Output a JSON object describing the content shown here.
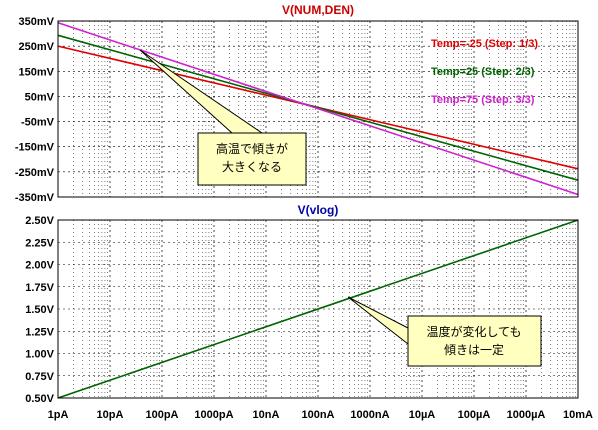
{
  "chart_data": [
    {
      "type": "line",
      "title": "V(NUM,DEN)",
      "xscale": "log",
      "xlim": [
        "1pA",
        "10mA"
      ],
      "ylim": [
        -350,
        350
      ],
      "yunit": "mV",
      "yticks": [
        "350mV",
        "250mV",
        "150mV",
        "50mV",
        "-50mV",
        "-150mV",
        "-250mV",
        "-350mV"
      ],
      "series": [
        {
          "name": "Temp=-25  (Step: 1/3)",
          "color": "#e00000",
          "x": [
            "1pA",
            "10mA"
          ],
          "y": [
            250,
            -238
          ]
        },
        {
          "name": "Temp=25  (Step: 2/3)",
          "color": "#006400",
          "x": [
            "1pA",
            "10mA"
          ],
          "y": [
            293,
            -283
          ]
        },
        {
          "name": "Temp=75  (Step: 3/3)",
          "color": "#d020d0",
          "x": [
            "1pA",
            "10mA"
          ],
          "y": [
            343,
            -340
          ]
        }
      ],
      "annotation": {
        "lines": [
          "高温で傾きが",
          "大きくなる"
        ]
      }
    },
    {
      "type": "line",
      "title": "V(vlog)",
      "xscale": "log",
      "xlim": [
        "1pA",
        "10mA"
      ],
      "ylim": [
        0.5,
        2.5
      ],
      "yunit": "V",
      "yticks": [
        "2.50V",
        "2.25V",
        "2.00V",
        "1.75V",
        "1.50V",
        "1.25V",
        "1.00V",
        "0.75V",
        "0.50V"
      ],
      "series": [
        {
          "color": "#006400",
          "x": [
            "1pA",
            "10mA"
          ],
          "y": [
            0.5,
            2.5
          ]
        }
      ],
      "annotation": {
        "lines": [
          "温度が変化しても",
          "傾きは一定"
        ]
      }
    }
  ],
  "xticks": [
    "1pA",
    "10pA",
    "100pA",
    "1000pA",
    "10nA",
    "100nA",
    "1000nA",
    "10µA",
    "100µA",
    "1000µA",
    "10mA"
  ],
  "colors": {
    "grid": "#000000",
    "callout_fill": "#ffffc0",
    "callout_border": "#000000"
  }
}
